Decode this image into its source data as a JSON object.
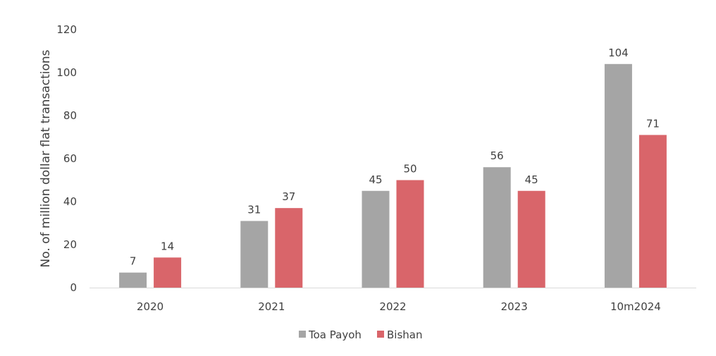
{
  "chart_data": {
    "type": "bar",
    "categories": [
      "2020",
      "2021",
      "2022",
      "2023",
      "10m2024"
    ],
    "series": [
      {
        "name": "Toa Payoh",
        "values": [
          7,
          31,
          45,
          56,
          104
        ],
        "color": "#a5a5a5"
      },
      {
        "name": "Bishan",
        "values": [
          14,
          37,
          50,
          45,
          71
        ],
        "color": "#d9656a"
      }
    ],
    "ylabel": "No. of million dollar flat transactions",
    "xlabel": "",
    "ylim": [
      0,
      120
    ],
    "yticks": [
      0,
      20,
      40,
      60,
      80,
      100,
      120
    ],
    "grid": false,
    "legend": "bottom",
    "data_labels": true
  }
}
